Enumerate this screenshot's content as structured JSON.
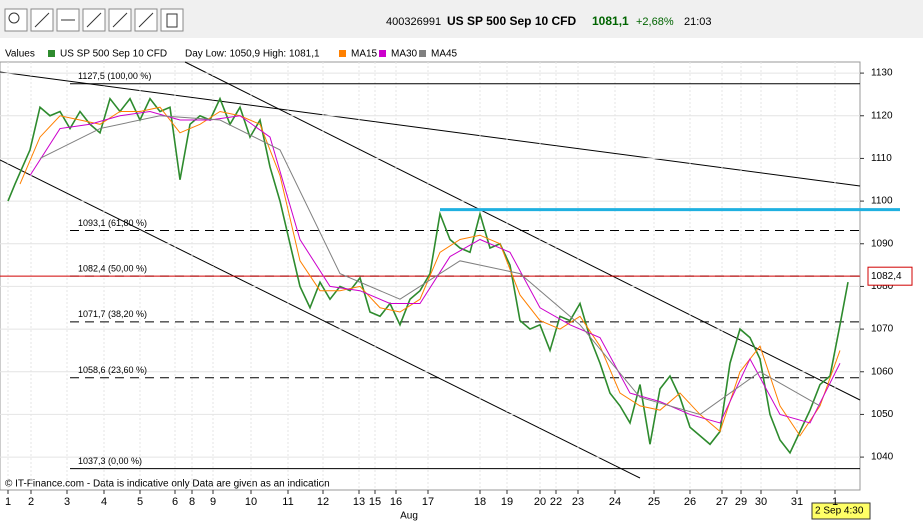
{
  "header": {
    "id": "400326991",
    "instrument": "US SP 500 Sep 10 CFD",
    "price": "1081,1",
    "change": "+2,68%",
    "time": "21:03"
  },
  "legend_bar": {
    "label": "Values",
    "day_range": "Day Low: 1050,9 High: 1081,1"
  },
  "footer": "© IT-Finance.com - Data is indicative only Data are given as an indication",
  "cursor_time": "2 Sep 4:30",
  "chart_data": {
    "type": "line",
    "xlabel": "Aug",
    "grid": true,
    "xlim": [
      0,
      86
    ],
    "ylim": [
      1035.1,
      1132.6
    ],
    "yticks": [
      1040,
      1050,
      1060,
      1070,
      1080,
      1090,
      1100,
      1110,
      1120,
      1130
    ],
    "xticks": [
      {
        "value": 0.8,
        "label": "1"
      },
      {
        "value": 3.1,
        "label": "2"
      },
      {
        "value": 6.7,
        "label": "3"
      },
      {
        "value": 10.4,
        "label": "4"
      },
      {
        "value": 14,
        "label": "5"
      },
      {
        "value": 17.5,
        "label": "6"
      },
      {
        "value": 19.2,
        "label": "8"
      },
      {
        "value": 21.3,
        "label": "9"
      },
      {
        "value": 25.1,
        "label": "10"
      },
      {
        "value": 28.8,
        "label": "11"
      },
      {
        "value": 32.3,
        "label": "12"
      },
      {
        "value": 35.9,
        "label": "13"
      },
      {
        "value": 37.5,
        "label": "15"
      },
      {
        "value": 39.6,
        "label": "16"
      },
      {
        "value": 42.8,
        "label": "17"
      },
      {
        "value": 48,
        "label": "18"
      },
      {
        "value": 50.7,
        "label": "19"
      },
      {
        "value": 54,
        "label": "20"
      },
      {
        "value": 55.6,
        "label": "22"
      },
      {
        "value": 57.8,
        "label": "23"
      },
      {
        "value": 61.5,
        "label": "24"
      },
      {
        "value": 65.4,
        "label": "25"
      },
      {
        "value": 69,
        "label": "26"
      },
      {
        "value": 72.2,
        "label": "27"
      },
      {
        "value": 74.1,
        "label": "29"
      },
      {
        "value": 76.1,
        "label": "30"
      },
      {
        "value": 79.7,
        "label": "31"
      },
      {
        "value": 83.5,
        "label": "1"
      }
    ],
    "levels": [
      {
        "value": 1127.5,
        "label": "1127,5 (100,00 %)"
      },
      {
        "value": 1093.1,
        "label": "1093,1 (61,80 %)"
      },
      {
        "value": 1082.4,
        "label": "1082,4 (50,00 %)"
      },
      {
        "value": 1071.7,
        "label": "1071,7 (38,20 %)"
      },
      {
        "value": 1058.6,
        "label": "1058,6 (23,60 %)"
      },
      {
        "value": 1037.3,
        "label": "1037,3 (0,00 %)"
      }
    ],
    "current": {
      "value": 1082.4,
      "label": "1082,4"
    },
    "resistance": {
      "value": 1098,
      "x": [
        44,
        90
      ]
    },
    "series": [
      {
        "name": "US SP 500 Sep 10 CFD",
        "color": "#2e8b2e",
        "x": [
          0.8,
          1.5,
          3,
          4,
          5,
          6,
          7,
          8,
          9,
          10,
          11,
          12,
          13,
          14,
          15,
          16,
          17,
          18,
          19,
          20,
          21,
          22,
          23,
          24,
          25,
          26,
          27,
          28,
          29,
          30,
          31,
          32,
          33,
          34,
          35,
          36,
          37,
          38,
          39,
          40,
          41,
          42,
          43,
          44,
          45,
          46,
          47,
          48,
          49,
          50,
          51,
          52,
          53,
          54,
          55,
          56,
          57,
          58,
          59,
          60,
          61,
          62,
          63,
          64,
          65,
          66,
          67,
          68,
          69,
          70,
          71,
          72,
          73,
          74,
          75,
          76,
          77,
          78,
          79,
          80,
          81,
          82,
          83,
          84,
          84.8
        ],
        "values": [
          1100,
          1104,
          1112,
          1122,
          1120,
          1121,
          1117,
          1121,
          1118,
          1116,
          1124,
          1121,
          1124,
          1119,
          1124,
          1121,
          1122,
          1105,
          1118,
          1120,
          1119,
          1124,
          1118,
          1122,
          1115,
          1119,
          1108,
          1100,
          1090,
          1080,
          1075,
          1081,
          1077,
          1080,
          1079,
          1082,
          1074,
          1073,
          1076,
          1071,
          1077,
          1079,
          1083,
          1097,
          1091,
          1089,
          1088,
          1097,
          1089,
          1090,
          1085,
          1072,
          1070,
          1071,
          1065,
          1073,
          1072,
          1076,
          1068,
          1062,
          1055,
          1052,
          1048,
          1057,
          1043,
          1056,
          1059,
          1054,
          1047,
          1045,
          1043,
          1046,
          1062,
          1070,
          1068,
          1063,
          1050,
          1044,
          1041,
          1046,
          1051,
          1057,
          1059,
          1071,
          1081
        ]
      },
      {
        "name": "MA15",
        "color": "#ff8000",
        "x": [
          2,
          4,
          6,
          8,
          10,
          12,
          14,
          16,
          18,
          20,
          22,
          24,
          26,
          28,
          30,
          32,
          34,
          36,
          38,
          40,
          42,
          44,
          46,
          48,
          50,
          52,
          54,
          56,
          58,
          60,
          62,
          64,
          66,
          68,
          70,
          72,
          74,
          76,
          78,
          80,
          82,
          84
        ],
        "values": [
          1104,
          1115,
          1120,
          1119,
          1118,
          1121,
          1121,
          1122,
          1116,
          1118,
          1121,
          1120,
          1118,
          1106,
          1086,
          1079,
          1079,
          1080,
          1075,
          1074,
          1077,
          1088,
          1091,
          1092,
          1090,
          1078,
          1072,
          1070,
          1073,
          1066,
          1055,
          1052,
          1051,
          1055,
          1050,
          1046,
          1060,
          1066,
          1052,
          1045,
          1052,
          1065
        ]
      },
      {
        "name": "MA30",
        "color": "#cc00cc",
        "x": [
          3,
          6,
          9,
          12,
          15,
          18,
          21,
          24,
          27,
          30,
          33,
          36,
          39,
          42,
          45,
          48,
          51,
          54,
          57,
          60,
          63,
          66,
          69,
          72,
          75,
          78,
          81,
          84
        ],
        "values": [
          1106,
          1117,
          1118,
          1120,
          1121,
          1119,
          1119,
          1120,
          1115,
          1091,
          1080,
          1079,
          1076,
          1076,
          1087,
          1091,
          1088,
          1075,
          1071,
          1068,
          1055,
          1053,
          1050,
          1048,
          1063,
          1050,
          1048,
          1062
        ]
      },
      {
        "name": "MA45",
        "color": "#808080",
        "x": [
          4,
          10,
          16,
          22,
          28,
          34,
          40,
          46,
          52,
          58,
          64,
          70,
          76,
          82
        ],
        "values": [
          1110,
          1117,
          1120,
          1119,
          1112,
          1083,
          1077,
          1086,
          1083,
          1071,
          1054,
          1050,
          1060,
          1052
        ]
      }
    ]
  }
}
